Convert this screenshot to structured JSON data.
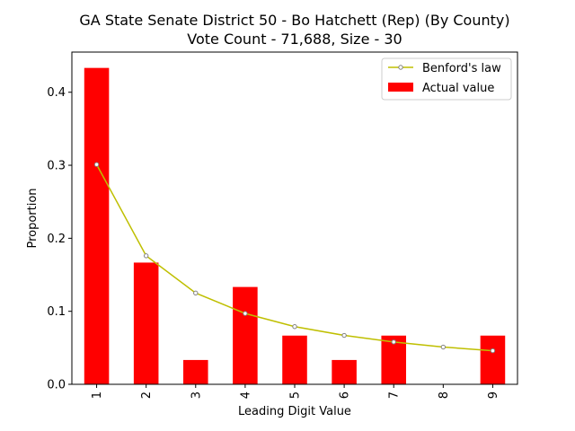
{
  "chart_data": {
    "type": "bar",
    "title_lines": [
      "GA State Senate District 50 - Bo Hatchett (Rep) (By County)",
      "Vote Count - 71,688, Size - 30"
    ],
    "xlabel": "Leading Digit Value",
    "ylabel": "Proportion",
    "categories": [
      "1",
      "2",
      "3",
      "4",
      "5",
      "6",
      "7",
      "8",
      "9"
    ],
    "ylim": [
      0,
      0.455
    ],
    "yticks": [
      "0.0",
      "0.1",
      "0.2",
      "0.3",
      "0.4"
    ],
    "grid": false,
    "legend_position": "top-right",
    "series": [
      {
        "name": "Benford's law",
        "kind": "line",
        "color": "#bfbf00",
        "marker": "circle",
        "values": [
          0.301,
          0.176,
          0.125,
          0.097,
          0.079,
          0.067,
          0.058,
          0.051,
          0.046
        ]
      },
      {
        "name": "Actual value",
        "kind": "bar",
        "color": "#ff0000",
        "values": [
          0.4333,
          0.1667,
          0.0333,
          0.1333,
          0.0667,
          0.0333,
          0.0667,
          0.0,
          0.0667
        ]
      }
    ]
  }
}
